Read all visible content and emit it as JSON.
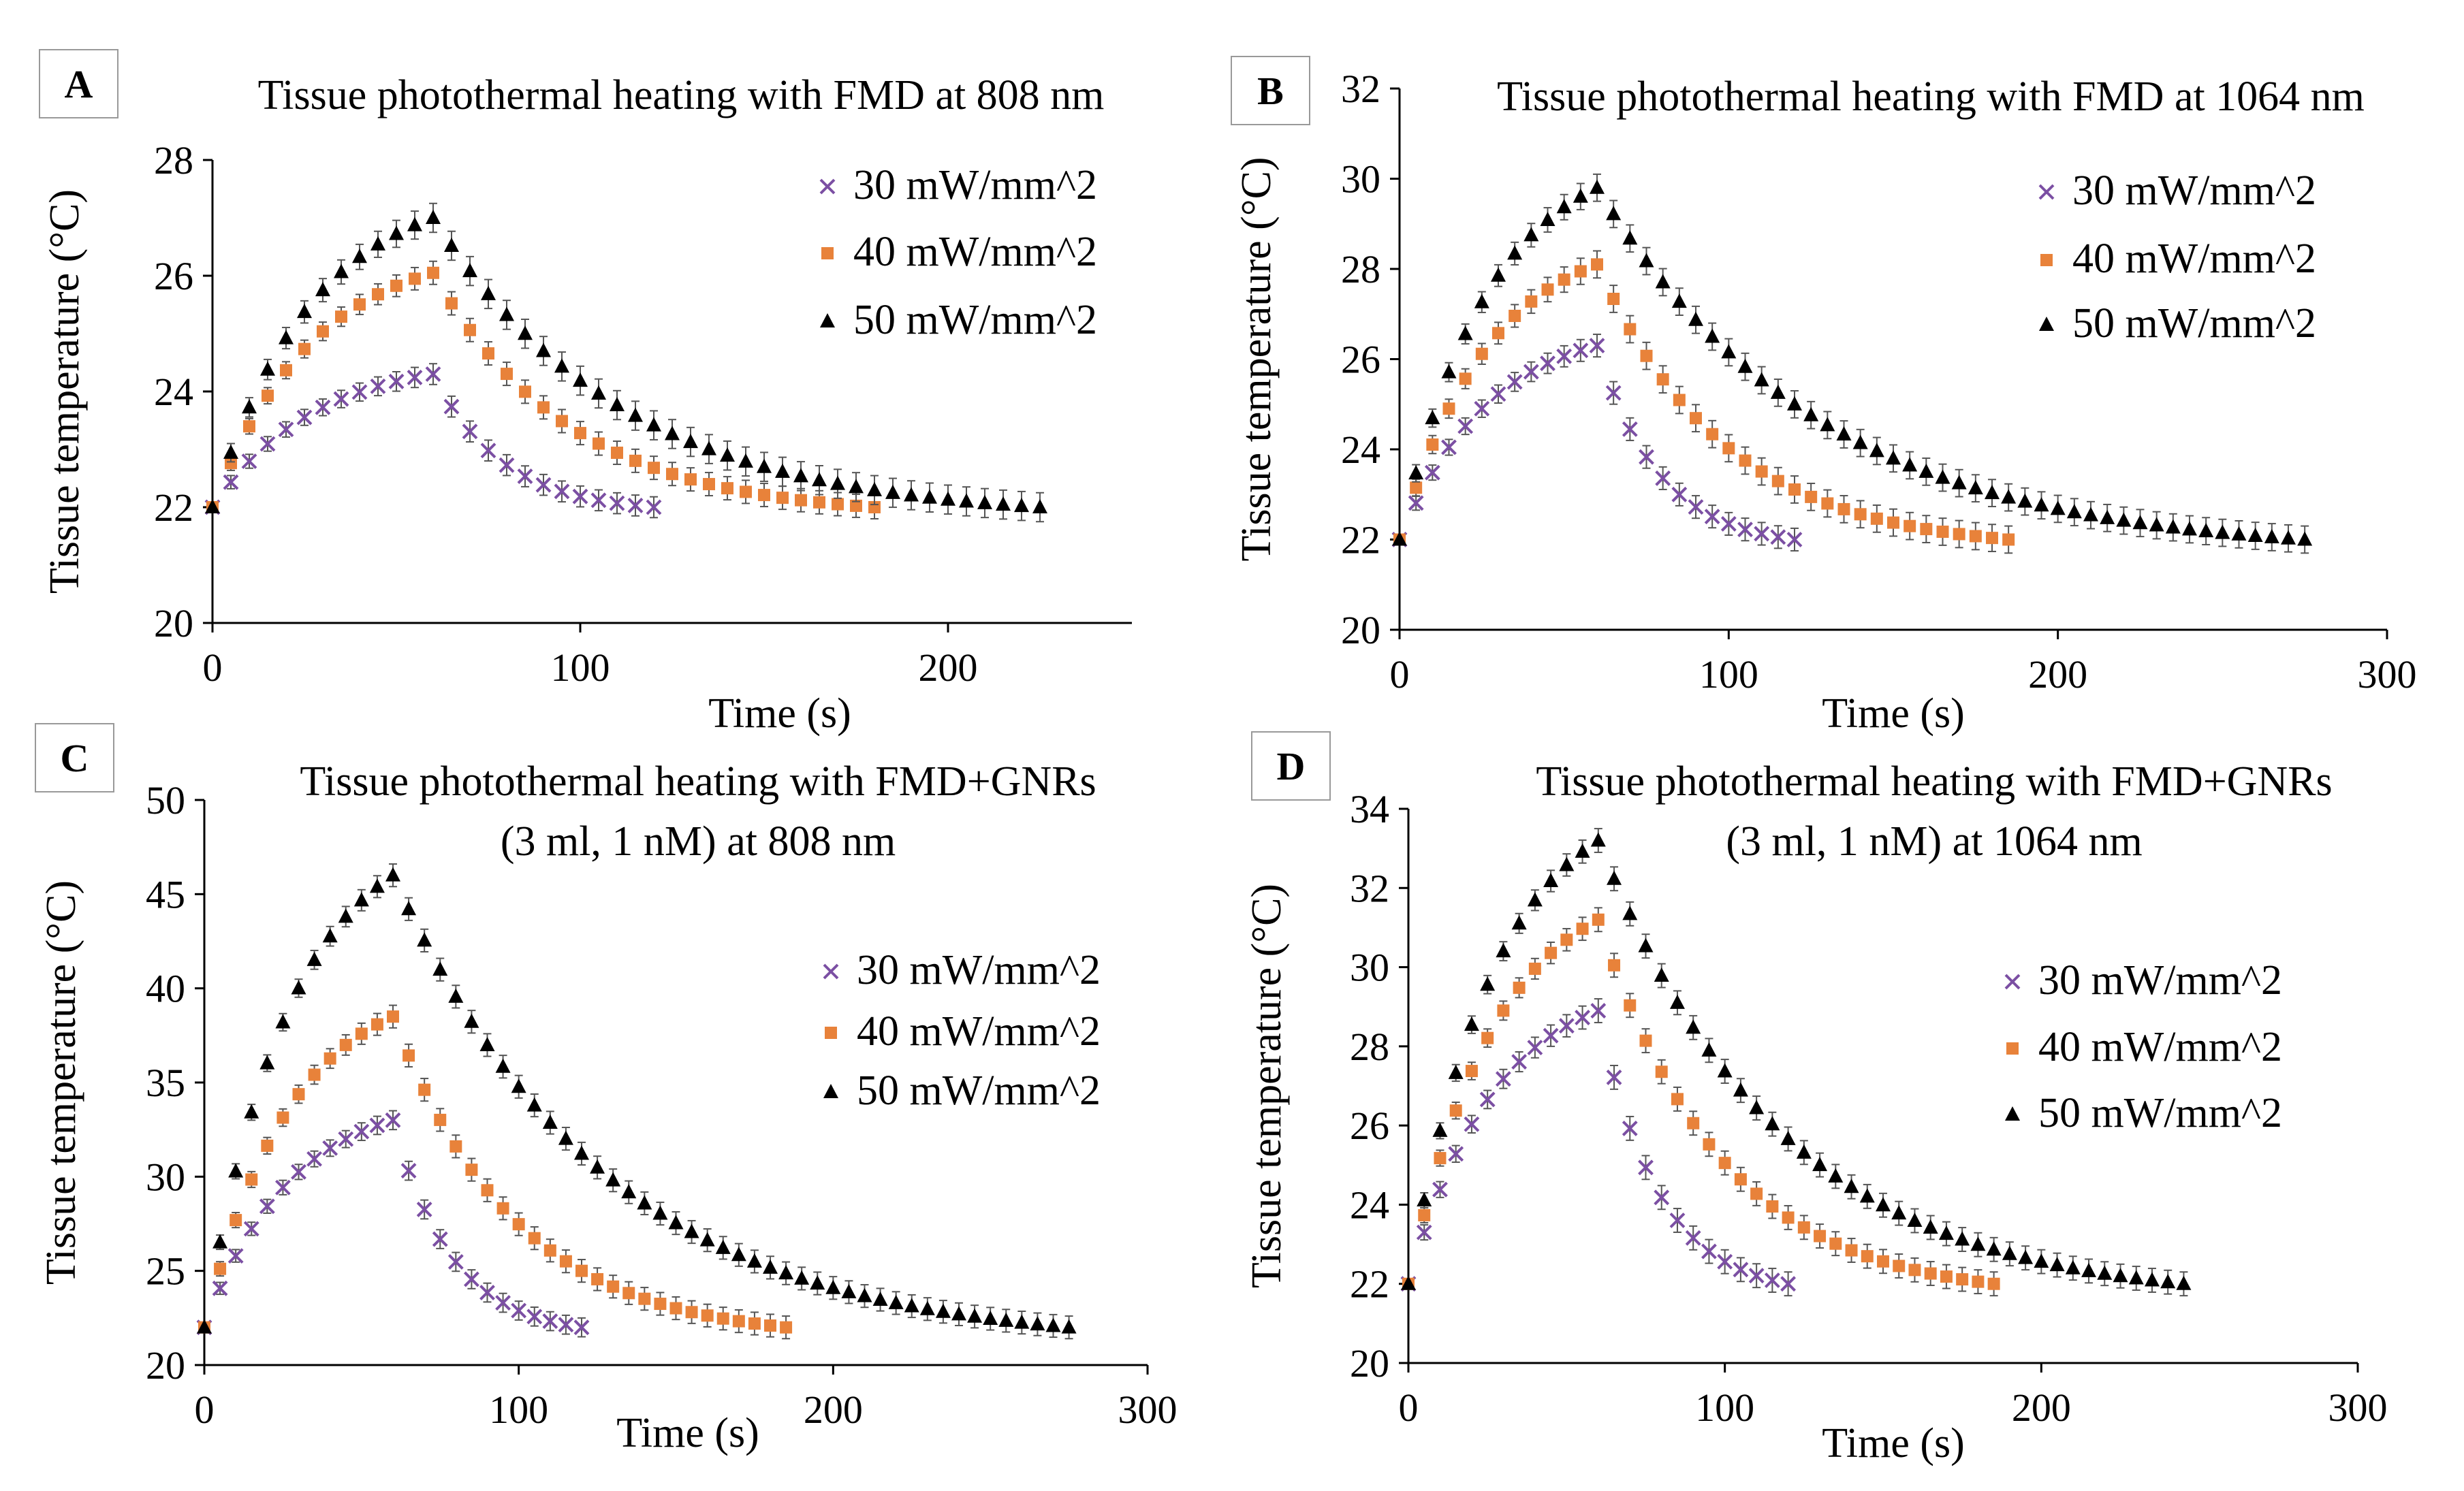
{
  "colors": {
    "s30": "#7b4fa3",
    "s40": "#e8823a",
    "s50": "#000000",
    "error_bar": "#555555",
    "axis": "#000000"
  },
  "legend_labels": [
    "30 mW/mm^2",
    "40 mW/mm^2",
    "50 mW/mm^2"
  ],
  "chart_data": [
    {
      "id": "A",
      "type": "scatter",
      "letter": "A",
      "title_lines": [
        "Tissue photothermal heating with FMD at 808 nm"
      ],
      "xlabel": "Time (s)",
      "ylabel": "Tissue temperature (°C)",
      "xlim": [
        0,
        250
      ],
      "ylim": [
        20,
        28
      ],
      "xticks": [
        0,
        100,
        200
      ],
      "yticks": [
        20,
        22,
        24,
        26,
        28
      ],
      "series": [
        {
          "name": "30 mW/mm^2",
          "marker": "x",
          "peak": 24.3,
          "heat_end": 60,
          "end_time": 120,
          "err": 0.18
        },
        {
          "name": "40 mW/mm^2",
          "marker": "square",
          "peak": 26.05,
          "heat_end": 60,
          "end_time": 180,
          "err": 0.2
        },
        {
          "name": "50 mW/mm^2",
          "marker": "triangle",
          "peak": 27.0,
          "heat_end": 60,
          "end_time": 225,
          "err": 0.25
        }
      ]
    },
    {
      "id": "B",
      "type": "scatter",
      "letter": "B",
      "title_lines": [
        "Tissue photothermal heating with FMD at 1064 nm"
      ],
      "xlabel": "Time (s)",
      "ylabel": "Tissue temperature (°C)",
      "xlim": [
        0,
        300
      ],
      "ylim": [
        20,
        32
      ],
      "xticks": [
        0,
        100,
        200,
        300
      ],
      "yticks": [
        20,
        22,
        24,
        26,
        28,
        30,
        32
      ],
      "series": [
        {
          "name": "30 mW/mm^2",
          "marker": "x",
          "peak": 26.3,
          "heat_end": 60,
          "end_time": 120,
          "err": 0.25
        },
        {
          "name": "40 mW/mm^2",
          "marker": "square",
          "peak": 28.1,
          "heat_end": 60,
          "end_time": 185,
          "err": 0.3
        },
        {
          "name": "50 mW/mm^2",
          "marker": "triangle",
          "peak": 29.8,
          "heat_end": 60,
          "end_time": 275,
          "err": 0.3
        }
      ]
    },
    {
      "id": "C",
      "type": "scatter",
      "letter": "C",
      "title_lines": [
        "Tissue photothermal heating with FMD+GNRs",
        "(3 ml, 1 nM) at 808 nm"
      ],
      "xlabel": "Time (s)",
      "ylabel": "Tissue temperature (°C)",
      "xlim": [
        0,
        300
      ],
      "ylim": [
        20,
        50
      ],
      "xticks": [
        0,
        100,
        200,
        300
      ],
      "yticks": [
        20,
        25,
        30,
        35,
        40,
        45,
        50
      ],
      "series": [
        {
          "name": "30 mW/mm^2",
          "marker": "x",
          "peak": 33.0,
          "heat_end": 60,
          "end_time": 120,
          "err": 0.5
        },
        {
          "name": "40 mW/mm^2",
          "marker": "square",
          "peak": 38.5,
          "heat_end": 60,
          "end_time": 185,
          "err": 0.6
        },
        {
          "name": "50 mW/mm^2",
          "marker": "triangle",
          "peak": 46.0,
          "heat_end": 60,
          "end_time": 275,
          "err": 0.6
        }
      ]
    },
    {
      "id": "D",
      "type": "scatter",
      "letter": "D",
      "title_lines": [
        "Tissue photothermal heating with FMD+GNRs",
        "(3 ml, 1 nM) at 1064 nm"
      ],
      "xlabel": "Time (s)",
      "ylabel": "Tissue temperature (°C)",
      "xlim": [
        0,
        300
      ],
      "ylim": [
        20,
        34
      ],
      "xticks": [
        0,
        100,
        200,
        300
      ],
      "yticks": [
        20,
        22,
        24,
        26,
        28,
        30,
        32,
        34
      ],
      "series": [
        {
          "name": "30 mW/mm^2",
          "marker": "x",
          "peak": 28.9,
          "heat_end": 60,
          "end_time": 120,
          "err": 0.3
        },
        {
          "name": "40 mW/mm^2",
          "marker": "square",
          "peak": 31.2,
          "heat_end": 60,
          "end_time": 185,
          "err": 0.3
        },
        {
          "name": "50 mW/mm^2",
          "marker": "triangle",
          "peak": 33.2,
          "heat_end": 60,
          "end_time": 245,
          "err": 0.3
        }
      ]
    }
  ]
}
